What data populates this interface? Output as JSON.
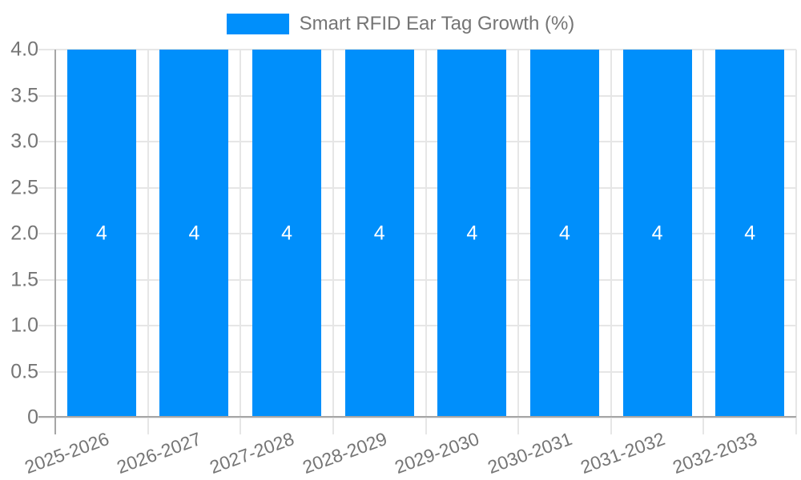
{
  "chart_data": {
    "type": "bar",
    "title": "",
    "legend_position": "top",
    "series": [
      {
        "name": "Smart RFID Ear Tag Growth (%)",
        "values": [
          4,
          4,
          4,
          4,
          4,
          4,
          4,
          4
        ]
      }
    ],
    "categories": [
      "2025-2026",
      "2026-2027",
      "2027-2028",
      "2028-2029",
      "2029-2030",
      "2030-2031",
      "2031-2032",
      "2032-2033"
    ],
    "bar_value_labels": [
      "4",
      "4",
      "4",
      "4",
      "4",
      "4",
      "4",
      "4"
    ],
    "y_tick_labels": [
      "4.0",
      "3.5",
      "3.0",
      "2.5",
      "2.0",
      "1.5",
      "1.0",
      "0.5",
      "0"
    ],
    "y_tick_values": [
      4.0,
      3.5,
      3.0,
      2.5,
      2.0,
      1.5,
      1.0,
      0.5,
      0
    ],
    "ylim": [
      0,
      4
    ],
    "xlabel": "",
    "ylabel": "",
    "grid": true,
    "colors": {
      "bar": "#008FFB",
      "grid": "#e6e6e6",
      "axis": "#a6a6a6",
      "tick_label": "#757575",
      "legend_text": "#757575",
      "bar_label": "#ffffff"
    }
  }
}
